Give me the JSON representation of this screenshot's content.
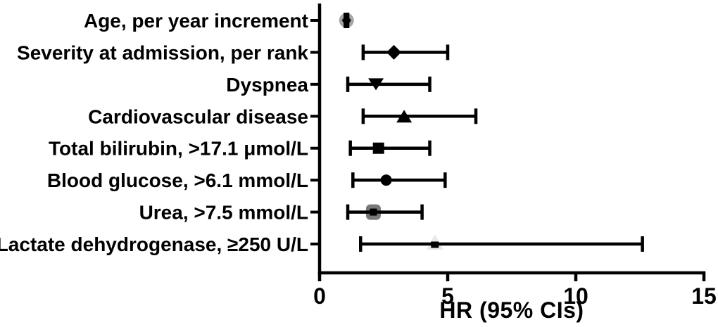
{
  "figure": {
    "background": "#ffffff",
    "axis_color": "#000000",
    "text_color": "#000000"
  },
  "chart_data": {
    "type": "forest",
    "title": "",
    "xlabel": "HR (95% CIs)",
    "ylabel": "",
    "xlim": [
      0,
      15
    ],
    "xticks": [
      0,
      5,
      10,
      15
    ],
    "xtick_labels": [
      "0",
      "5",
      "10",
      "15"
    ],
    "grid": false,
    "legend_position": "none",
    "rows": [
      {
        "label": "Age, per year increment",
        "hr": 1.05,
        "ci_low": 1.0,
        "ci_high": 1.1,
        "marker": "diamond-small",
        "marker_color": "#000000",
        "bg_marker": "circle",
        "bg_color": "#a4a4a4"
      },
      {
        "label": "Severity at admission, per rank",
        "hr": 2.9,
        "ci_low": 1.7,
        "ci_high": 5.0,
        "marker": "diamond",
        "marker_color": "#000000"
      },
      {
        "label": "Dyspnea",
        "hr": 2.2,
        "ci_low": 1.1,
        "ci_high": 4.3,
        "marker": "triangle-down",
        "marker_color": "#000000"
      },
      {
        "label": "Cardiovascular disease",
        "hr": 3.3,
        "ci_low": 1.7,
        "ci_high": 6.1,
        "marker": "triangle-up",
        "marker_color": "#000000"
      },
      {
        "label": "Total bilirubin, >17.1 μmol/L",
        "hr": 2.3,
        "ci_low": 1.2,
        "ci_high": 4.3,
        "marker": "square",
        "marker_color": "#000000"
      },
      {
        "label": "Blood glucose, >6.1 mmol/L",
        "hr": 2.6,
        "ci_low": 1.3,
        "ci_high": 4.9,
        "marker": "circle",
        "marker_color": "#000000"
      },
      {
        "label": "Urea, >7.5 mmol/L",
        "hr": 2.1,
        "ci_low": 1.1,
        "ci_high": 4.0,
        "marker": "square-small",
        "marker_color": "#000000",
        "bg_marker": "rounded-square",
        "bg_color": "#787878"
      },
      {
        "label": "Lactate dehydrogenase, ≥250 U/L",
        "hr": 4.5,
        "ci_low": 1.6,
        "ci_high": 12.6,
        "marker": "square-flat",
        "marker_color": "#000000",
        "bg_marker": "triangle-up-light",
        "bg_color": "#e9e9e9"
      }
    ]
  }
}
